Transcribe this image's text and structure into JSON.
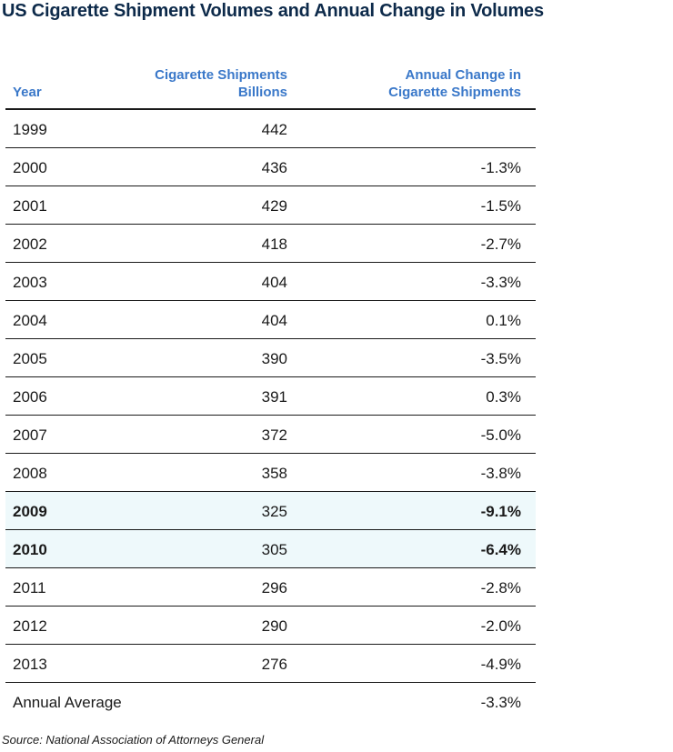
{
  "colors": {
    "title": "#0d2a4a",
    "header": "#3a78c9",
    "highlight_row": "#eef9fb",
    "rule": "#1a1a1a"
  },
  "chart_data": {
    "type": "table",
    "title": "US Cigarette Shipment Volumes and Annual Change in Volumes",
    "columns": [
      "Year",
      "Cigarette Shipments Billions",
      "Annual Change in Cigarette Shipments"
    ],
    "header": {
      "year": "Year",
      "shipments_line1": "Cigarette Shipments",
      "shipments_line2": "Billions",
      "change_line1": "Annual Change in",
      "change_line2": "Cigarette Shipments"
    },
    "rows": [
      {
        "year": "1999",
        "shipments": "442",
        "change": "",
        "highlight": false
      },
      {
        "year": "2000",
        "shipments": "436",
        "change": "-1.3%",
        "highlight": false
      },
      {
        "year": "2001",
        "shipments": "429",
        "change": "-1.5%",
        "highlight": false
      },
      {
        "year": "2002",
        "shipments": "418",
        "change": "-2.7%",
        "highlight": false
      },
      {
        "year": "2003",
        "shipments": "404",
        "change": "-3.3%",
        "highlight": false
      },
      {
        "year": "2004",
        "shipments": "404",
        "change": "0.1%",
        "highlight": false
      },
      {
        "year": "2005",
        "shipments": "390",
        "change": "-3.5%",
        "highlight": false
      },
      {
        "year": "2006",
        "shipments": "391",
        "change": "0.3%",
        "highlight": false
      },
      {
        "year": "2007",
        "shipments": "372",
        "change": "-5.0%",
        "highlight": false
      },
      {
        "year": "2008",
        "shipments": "358",
        "change": "-3.8%",
        "highlight": false
      },
      {
        "year": "2009",
        "shipments": "325",
        "change": "-9.1%",
        "highlight": true
      },
      {
        "year": "2010",
        "shipments": "305",
        "change": "-6.4%",
        "highlight": true
      },
      {
        "year": "2011",
        "shipments": "296",
        "change": "-2.8%",
        "highlight": false
      },
      {
        "year": "2012",
        "shipments": "290",
        "change": "-2.0%",
        "highlight": false
      },
      {
        "year": "2013",
        "shipments": "276",
        "change": "-4.9%",
        "highlight": false
      },
      {
        "year": "Annual Average",
        "shipments": "",
        "change": "-3.3%",
        "highlight": false
      }
    ],
    "source": "Source: National Association of Attorneys General"
  }
}
